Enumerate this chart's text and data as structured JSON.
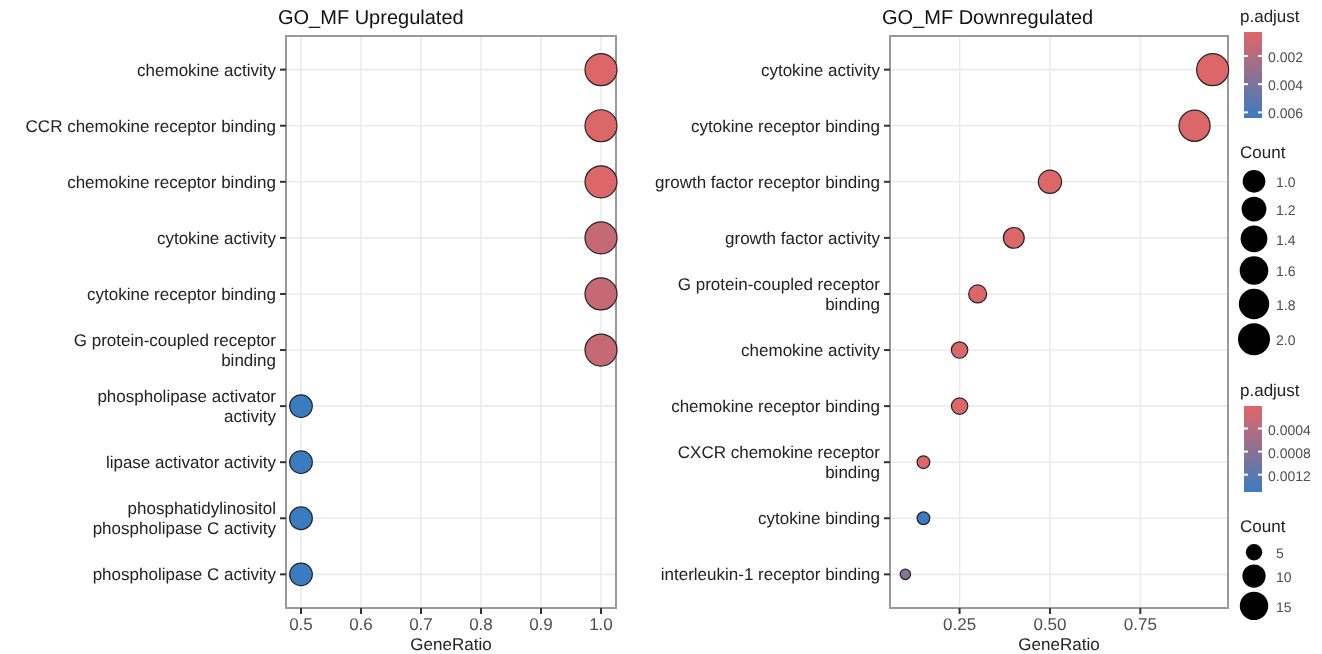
{
  "chart_data": [
    {
      "type": "bubble",
      "orientation": "horizontal",
      "title": "GO_MF Upregulated",
      "xlabel": "GeneRatio",
      "categories": [
        "chemokine activity",
        "CCR chemokine receptor binding",
        "chemokine receptor binding",
        "cytokine activity",
        "cytokine receptor binding",
        "G protein-coupled receptor binding",
        "phospholipase activator activity",
        "lipase activator activity",
        "phosphatidylinositol phospholipase C activity",
        "phospholipase C activity"
      ],
      "values": [
        1,
        1,
        1,
        1,
        1,
        1,
        0.5,
        0.5,
        0.5,
        0.5
      ],
      "sizes": [
        2,
        2,
        2,
        2,
        2,
        2,
        1,
        1,
        1,
        1
      ],
      "cvalues": [
        0.0005,
        0.0005,
        0.0005,
        0.0013,
        0.0013,
        0.0013,
        0.0064,
        0.0064,
        0.0064,
        0.0064
      ],
      "xlim": [
        0.475,
        1.025
      ],
      "xticks": [
        0.5,
        0.6,
        0.7,
        0.8,
        0.9,
        {
          "value": 1,
          "label": "1.0"
        }
      ],
      "clabel": "p.adjust",
      "clim": [
        0.0003,
        0.0064
      ],
      "cticks": [
        0.002,
        0.004,
        0.006
      ],
      "legend_title": "Count",
      "size_legend": [
        {
          "value": 1,
          "label": "1.0"
        },
        1.2,
        1.4,
        1.6,
        1.8,
        {
          "value": 2,
          "label": "2.0"
        }
      ],
      "grid": true
    },
    {
      "type": "bubble",
      "orientation": "horizontal",
      "title": "GO_MF Downregulated",
      "xlabel": "GeneRatio",
      "categories": [
        "cytokine activity",
        "cytokine receptor binding",
        "growth factor receptor binding",
        "growth factor activity",
        "G protein-coupled receptor binding",
        "chemokine activity",
        "chemokine receptor binding",
        "CXCR chemokine receptor binding",
        "cytokine binding",
        "interleukin-1 receptor binding"
      ],
      "values": [
        0.95,
        0.9,
        0.5,
        0.4,
        0.3,
        0.25,
        0.25,
        0.15,
        0.15,
        0.1
      ],
      "sizes": [
        19,
        18,
        10,
        8,
        6,
        5,
        5,
        3,
        3,
        2
      ],
      "cvalues": [
        5e-05,
        5e-05,
        5e-05,
        5e-05,
        5e-05,
        5e-05,
        5e-05,
        5e-05,
        0.0015,
        0.0008
      ],
      "xlim": [
        0.0575,
        0.9925
      ],
      "xticks": [
        0.25,
        {
          "value": 0.5,
          "label": "0.50"
        },
        0.75
      ],
      "clabel": "p.adjust",
      "clim": [
        1e-05,
        0.0015
      ],
      "cticks": [
        0.0004,
        0.0008,
        0.0012
      ],
      "legend_title": "Count",
      "size_legend": [
        5,
        10,
        15
      ],
      "grid": true
    }
  ]
}
